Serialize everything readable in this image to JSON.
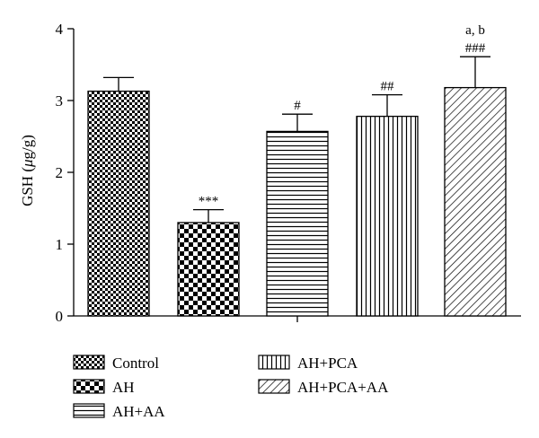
{
  "chart_data": {
    "type": "bar",
    "categories": [
      "Control",
      "AH",
      "AH+AA",
      "AH+PCA",
      "AH+PCA+AA"
    ],
    "values": [
      3.13,
      1.3,
      2.57,
      2.78,
      3.18
    ],
    "errors": [
      0.19,
      0.18,
      0.24,
      0.3,
      0.43
    ],
    "annotations": [
      "",
      "***",
      "#",
      "##",
      "###"
    ],
    "annotations_top": [
      "",
      "",
      "",
      "",
      "a, b"
    ],
    "patterns": [
      "fine-checker",
      "coarse-checker",
      "horizontal-lines",
      "vertical-lines",
      "diagonal-lines"
    ],
    "ylabel": "GSH (μg/g)",
    "ylabel_parts": {
      "prefix": "GSH (",
      "mu": "μ",
      "suffix": "g/g)"
    },
    "ylim": [
      0,
      4
    ],
    "yticks": [
      "0",
      "1",
      "2",
      "3",
      "4"
    ],
    "legend": {
      "placement": "bottom",
      "entries": [
        "Control",
        "AH",
        "AH+AA",
        "AH+PCA",
        "AH+PCA+AA"
      ]
    }
  }
}
